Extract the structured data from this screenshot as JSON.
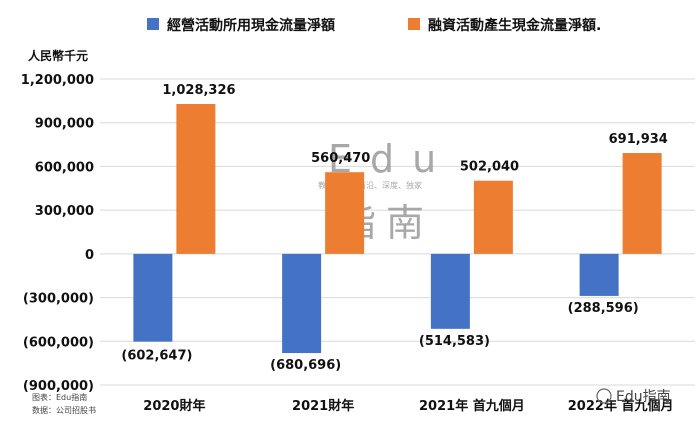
{
  "chart_data": {
    "type": "bar",
    "unit_label": "人民幣千元",
    "categories": [
      "2020財年",
      "2021財年",
      "2021年 首九個月",
      "2022年 首九個月"
    ],
    "series": [
      {
        "name": "經營活動所用現金流量淨額",
        "color": "#4472c4",
        "values": [
          -602647,
          -680696,
          -514583,
          -288596
        ],
        "labels": [
          "(602,647)",
          "(680,696)",
          "(514,583)",
          "(288,596)"
        ]
      },
      {
        "name": "融資活動產生現金流量淨額.",
        "color": "#ed7d31",
        "values": [
          1028326,
          560470,
          502040,
          691934
        ],
        "labels": [
          "1,028,326",
          "560,470",
          "502,040",
          "691,934"
        ]
      }
    ],
    "ylim": [
      -900000,
      1200000
    ],
    "yticks": [
      1200000,
      900000,
      600000,
      300000,
      0,
      -300000,
      -600000,
      -900000
    ],
    "ytick_labels": [
      "1,200,000",
      "900,000",
      "600,000",
      "300,000",
      "0",
      "(300,000)",
      "(600,000)",
      "(900,000)"
    ],
    "legend_position": "top",
    "grid": true
  },
  "notes": {
    "source_line1": "图表：Edu指南",
    "source_line2": "数据：公司招股书"
  },
  "watermark": {
    "big": "Edu",
    "sub": "教育行业、前沿、深度、独家",
    "cn": "指南",
    "brand": "Edu指南"
  }
}
